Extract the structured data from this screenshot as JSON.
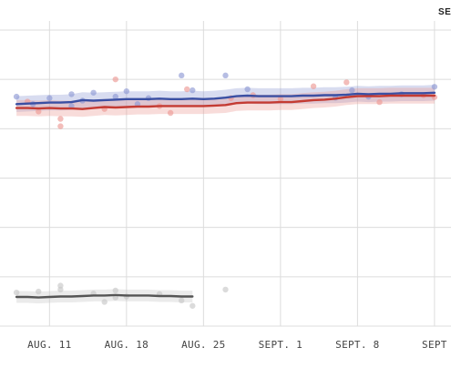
{
  "corner_label": "SE",
  "chart_data": {
    "type": "line",
    "title": "",
    "xlabel": "",
    "ylabel": "",
    "x_tick_labels": [
      "AUG. 11",
      "AUG. 18",
      "AUG. 25",
      "SEPT. 1",
      "SEPT. 8",
      "SEPT"
    ],
    "x": [
      0,
      1,
      2,
      3,
      4,
      5,
      6,
      7,
      8,
      9,
      10,
      11,
      12,
      13,
      14,
      15,
      16,
      17,
      18,
      19,
      20,
      21,
      22,
      23,
      24,
      25,
      26,
      27,
      28,
      29,
      30,
      31,
      32,
      33,
      34,
      35,
      36,
      37,
      38
    ],
    "series": [
      {
        "color": "#3a4fa3",
        "band_color": "#8f9ad4",
        "values": [
          45.0,
          45.1,
          45.2,
          45.3,
          45.3,
          45.4,
          45.8,
          45.7,
          45.8,
          45.9,
          46.0,
          46.0,
          46.0,
          46.1,
          46.0,
          46.0,
          46.1,
          46.0,
          46.1,
          46.3,
          46.6,
          46.7,
          46.6,
          46.6,
          46.6,
          46.6,
          46.7,
          46.7,
          46.8,
          46.8,
          46.9,
          47.1,
          47.0,
          47.1,
          47.1,
          47.2,
          47.2,
          47.2,
          47.3
        ]
      },
      {
        "color": "#c43b33",
        "band_color": "#ec9a95",
        "values": [
          44.2,
          44.2,
          44.1,
          44.2,
          44.1,
          44.1,
          44.0,
          44.2,
          44.4,
          44.3,
          44.4,
          44.5,
          44.5,
          44.6,
          44.6,
          44.6,
          44.6,
          44.6,
          44.7,
          44.8,
          45.2,
          45.3,
          45.3,
          45.3,
          45.4,
          45.4,
          45.6,
          45.8,
          45.9,
          46.1,
          46.4,
          46.6,
          46.6,
          46.6,
          46.7,
          46.7,
          46.7,
          46.7,
          46.7
        ]
      },
      {
        "color": "#555555",
        "band_color": "#c7c7c7",
        "values": [
          5.9,
          5.9,
          5.8,
          5.9,
          6.0,
          6.0,
          6.1,
          6.2,
          6.2,
          6.3,
          6.2,
          6.2,
          6.2,
          6.1,
          6.1,
          6.0,
          6.0,
          null,
          null,
          null,
          null,
          null,
          null,
          null,
          null,
          null,
          null,
          null,
          null,
          null,
          null,
          null,
          null,
          null,
          null,
          null,
          null,
          null,
          null
        ]
      }
    ],
    "points": [
      {
        "x": 0,
        "y": 46.5,
        "s": 0
      },
      {
        "x": 1,
        "y": 45.5,
        "s": 1
      },
      {
        "x": 1.5,
        "y": 45.0,
        "s": 0
      },
      {
        "x": 2,
        "y": 43.5,
        "s": 1
      },
      {
        "x": 3,
        "y": 46.2,
        "s": 0
      },
      {
        "x": 4,
        "y": 40.5,
        "s": 1
      },
      {
        "x": 4,
        "y": 42.0,
        "s": 1
      },
      {
        "x": 5,
        "y": 44.6,
        "s": 0
      },
      {
        "x": 5,
        "y": 47.0,
        "s": 0
      },
      {
        "x": 6,
        "y": 45.7,
        "s": 0
      },
      {
        "x": 7,
        "y": 47.3,
        "s": 0
      },
      {
        "x": 8,
        "y": 44.0,
        "s": 1
      },
      {
        "x": 9,
        "y": 46.5,
        "s": 0
      },
      {
        "x": 9,
        "y": 50.0,
        "s": 1
      },
      {
        "x": 10,
        "y": 47.6,
        "s": 0
      },
      {
        "x": 11,
        "y": 45.0,
        "s": 0
      },
      {
        "x": 12,
        "y": 46.2,
        "s": 0
      },
      {
        "x": 13,
        "y": 44.6,
        "s": 1
      },
      {
        "x": 14,
        "y": 43.2,
        "s": 1
      },
      {
        "x": 15,
        "y": 50.8,
        "s": 0
      },
      {
        "x": 15.5,
        "y": 48.0,
        "s": 1
      },
      {
        "x": 16,
        "y": 47.8,
        "s": 0
      },
      {
        "x": 19,
        "y": 50.8,
        "s": 0
      },
      {
        "x": 19.5,
        "y": 46.2,
        "s": 1
      },
      {
        "x": 21,
        "y": 48.0,
        "s": 0
      },
      {
        "x": 21.5,
        "y": 46.8,
        "s": 1
      },
      {
        "x": 24,
        "y": 46.0,
        "s": 1
      },
      {
        "x": 27,
        "y": 48.6,
        "s": 1
      },
      {
        "x": 29,
        "y": 46.3,
        "s": 0
      },
      {
        "x": 30,
        "y": 49.4,
        "s": 1
      },
      {
        "x": 30.5,
        "y": 47.8,
        "s": 0
      },
      {
        "x": 32,
        "y": 46.5,
        "s": 0
      },
      {
        "x": 33,
        "y": 45.4,
        "s": 1
      },
      {
        "x": 35,
        "y": 47.0,
        "s": 0
      },
      {
        "x": 37,
        "y": 46.8,
        "s": 1
      },
      {
        "x": 38,
        "y": 48.5,
        "s": 0
      },
      {
        "x": 38,
        "y": 46.4,
        "s": 1
      },
      {
        "x": 0,
        "y": 6.8,
        "s": 2
      },
      {
        "x": 2,
        "y": 7.0,
        "s": 2
      },
      {
        "x": 4,
        "y": 7.4,
        "s": 2
      },
      {
        "x": 4,
        "y": 8.2,
        "s": 2
      },
      {
        "x": 7,
        "y": 6.6,
        "s": 2
      },
      {
        "x": 8,
        "y": 4.9,
        "s": 2
      },
      {
        "x": 9,
        "y": 5.8,
        "s": 2
      },
      {
        "x": 9,
        "y": 7.2,
        "s": 2
      },
      {
        "x": 10,
        "y": 6.0,
        "s": 2
      },
      {
        "x": 13,
        "y": 6.5,
        "s": 2
      },
      {
        "x": 15,
        "y": 5.2,
        "s": 2
      },
      {
        "x": 16,
        "y": 4.1,
        "s": 2
      },
      {
        "x": 19,
        "y": 7.4,
        "s": 2
      }
    ],
    "ylim": [
      0,
      60
    ],
    "xlim": [
      -1.5,
      39.5
    ],
    "grid": true
  }
}
